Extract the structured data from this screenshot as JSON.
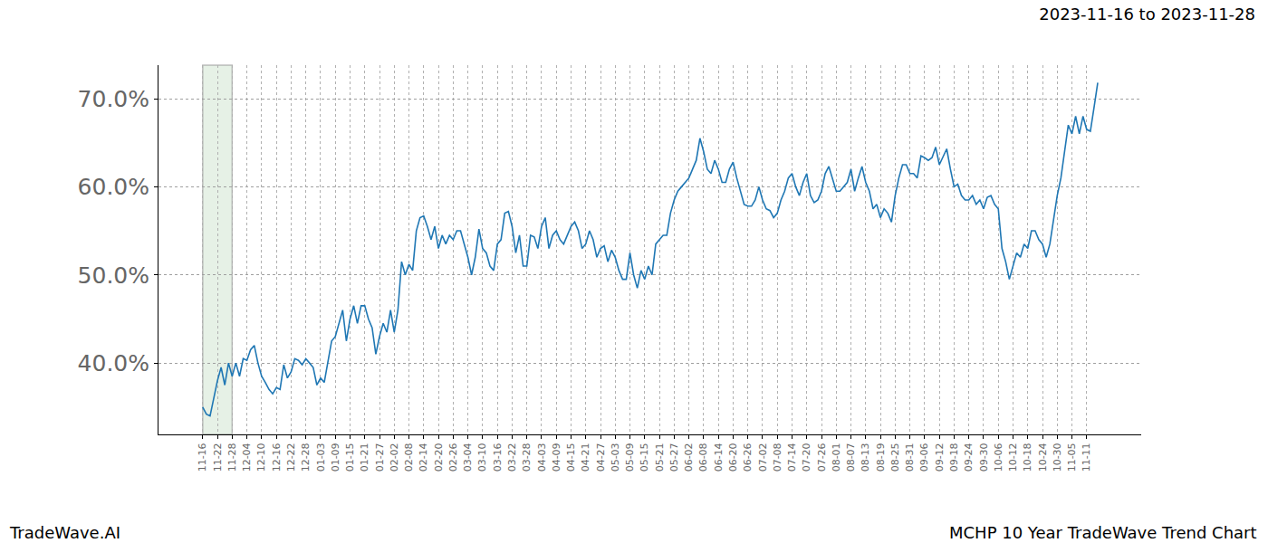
{
  "chart_data": {
    "type": "line",
    "title": "2023-11-16 to 2023-11-28",
    "annotations": [
      "TradeWave.AI",
      "MCHP 10 Year TradeWave Trend Chart"
    ],
    "shaded_range": [
      "11-16",
      "11-28"
    ],
    "grid": true,
    "color": "#1f77b4",
    "ylim": [
      31.9,
      73.8
    ],
    "yticks": [
      {
        "value": 40,
        "label": "40.0%"
      },
      {
        "value": 50,
        "label": "50.0%"
      },
      {
        "value": 60,
        "label": "60.0%"
      },
      {
        "value": 70,
        "label": "70.0%"
      }
    ],
    "categories": [
      "11-16",
      null,
      null,
      null,
      "11-22",
      null,
      null,
      null,
      "11-28",
      null,
      null,
      null,
      "12-04",
      null,
      null,
      null,
      "12-10",
      null,
      null,
      null,
      "12-16",
      null,
      null,
      null,
      "12-22",
      null,
      null,
      null,
      "12-28",
      null,
      null,
      null,
      "01-03",
      null,
      null,
      null,
      "01-09",
      null,
      null,
      null,
      "01-15",
      null,
      null,
      null,
      "01-21",
      null,
      null,
      null,
      "01-27",
      null,
      null,
      null,
      "02-02",
      null,
      null,
      null,
      "02-08",
      null,
      null,
      null,
      "02-14",
      null,
      null,
      null,
      "02-20",
      null,
      null,
      null,
      "02-26",
      null,
      null,
      null,
      "03-04",
      null,
      null,
      null,
      "03-10",
      null,
      null,
      null,
      "03-16",
      null,
      null,
      null,
      "03-22",
      null,
      null,
      null,
      "03-28",
      null,
      null,
      null,
      "04-03",
      null,
      null,
      null,
      "04-09",
      null,
      null,
      null,
      "04-15",
      null,
      null,
      null,
      "04-21",
      null,
      null,
      null,
      "04-27",
      null,
      null,
      null,
      "05-03",
      null,
      null,
      null,
      "05-09",
      null,
      null,
      null,
      "05-15",
      null,
      null,
      null,
      "05-21",
      null,
      null,
      null,
      "05-27",
      null,
      null,
      null,
      "06-02",
      null,
      null,
      null,
      "06-08",
      null,
      null,
      null,
      "06-14",
      null,
      null,
      null,
      "06-20",
      null,
      null,
      null,
      "06-26",
      null,
      null,
      null,
      "07-02",
      null,
      null,
      null,
      "07-08",
      null,
      null,
      null,
      "07-14",
      null,
      null,
      null,
      "07-20",
      null,
      null,
      null,
      "07-26",
      null,
      null,
      null,
      "08-01",
      null,
      null,
      null,
      "08-07",
      null,
      null,
      null,
      "08-13",
      null,
      null,
      null,
      "08-19",
      null,
      null,
      null,
      "08-25",
      null,
      null,
      null,
      "08-31",
      null,
      null,
      null,
      "09-06",
      null,
      null,
      null,
      "09-12",
      null,
      null,
      null,
      "09-18",
      null,
      null,
      null,
      "09-24",
      null,
      null,
      null,
      "09-30",
      null,
      null,
      null,
      "10-06",
      null,
      null,
      null,
      "10-12",
      null,
      null,
      null,
      "10-18",
      null,
      null,
      null,
      "10-24",
      null,
      null,
      null,
      "10-30",
      null,
      null,
      null,
      "11-05",
      null,
      null,
      null,
      "11-11",
      null,
      null,
      null
    ],
    "values": [
      35.0,
      34.2,
      34.0,
      36.0,
      38.0,
      39.5,
      37.5,
      40.0,
      38.5,
      40.0,
      38.5,
      40.5,
      40.3,
      41.5,
      42.0,
      40.0,
      38.5,
      37.8,
      37.0,
      36.5,
      37.2,
      37.0,
      39.8,
      38.3,
      39.0,
      40.5,
      40.3,
      39.8,
      40.5,
      40.0,
      39.5,
      37.5,
      38.3,
      37.8,
      40.0,
      42.5,
      43.0,
      44.5,
      46.0,
      42.5,
      45.0,
      46.5,
      44.5,
      46.5,
      46.5,
      45.0,
      44.0,
      41.0,
      43.0,
      44.5,
      43.5,
      46.0,
      43.5,
      46.0,
      51.5,
      50.0,
      51.2,
      50.5,
      55.0,
      56.5,
      56.7,
      55.5,
      54.0,
      55.5,
      53.0,
      54.5,
      53.5,
      54.5,
      54.0,
      55.0,
      55.0,
      53.5,
      52.0,
      50.0,
      52.0,
      55.2,
      53.0,
      52.5,
      51.0,
      50.5,
      53.5,
      54.0,
      57.0,
      57.2,
      55.5,
      52.5,
      54.5,
      51.0,
      51.0,
      54.5,
      54.3,
      53.0,
      55.5,
      56.5,
      53.0,
      54.5,
      55.0,
      54.0,
      53.5,
      54.5,
      55.5,
      56.0,
      55.0,
      53.0,
      53.5,
      55.0,
      54.0,
      52.0,
      53.0,
      53.3,
      51.5,
      52.8,
      52.0,
      50.5,
      49.5,
      49.5,
      52.5,
      50.0,
      48.5,
      50.5,
      49.5,
      51.0,
      50.0,
      53.5,
      54.0,
      54.5,
      54.5,
      57.0,
      58.5,
      59.5,
      60.0,
      60.5,
      61.0,
      62.0,
      63.0,
      65.5,
      64.0,
      62.0,
      61.5,
      63.0,
      62.0,
      60.5,
      60.5,
      62.0,
      62.8,
      61.0,
      59.5,
      58.0,
      57.8,
      57.8,
      58.5,
      60.0,
      58.5,
      57.5,
      57.3,
      56.5,
      57.0,
      58.5,
      59.5,
      61.0,
      61.5,
      60.0,
      59.0,
      60.5,
      61.5,
      59.0,
      58.2,
      58.5,
      59.5,
      61.5,
      62.3,
      61.0,
      59.5,
      59.5,
      60.0,
      60.5,
      62.0,
      59.5,
      61.0,
      62.3,
      60.5,
      59.5,
      57.5,
      58.0,
      56.5,
      57.5,
      57.0,
      56.0,
      59.0,
      61.0,
      62.5,
      62.5,
      61.5,
      61.5,
      61.0,
      63.5,
      63.3,
      63.0,
      63.3,
      64.5,
      62.5,
      63.5,
      64.3,
      62.0,
      60.0,
      60.3,
      59.0,
      58.5,
      58.5,
      59.0,
      58.0,
      58.5,
      57.5,
      58.8,
      59.0,
      58.0,
      57.5,
      53.0,
      51.5,
      49.5,
      51.0,
      52.5,
      52.0,
      53.5,
      53.0,
      55.0,
      55.0,
      54.0,
      53.5,
      52.0,
      53.5,
      56.5,
      59.0,
      61.0,
      64.0,
      67.0,
      66.0,
      68.0,
      66.0,
      68.0,
      66.5,
      66.3,
      69.0,
      71.8
    ]
  }
}
